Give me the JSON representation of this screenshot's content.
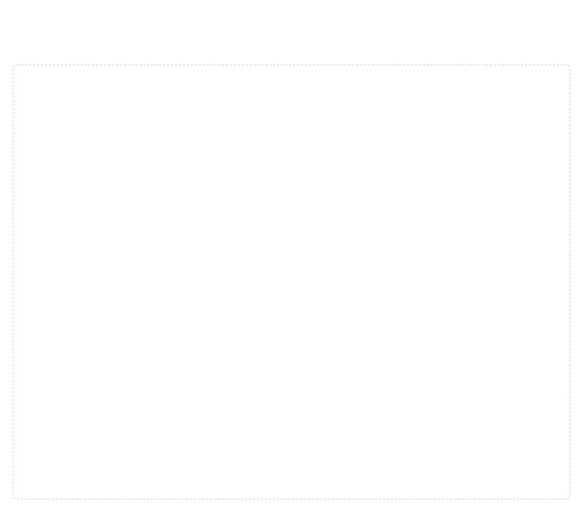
{
  "page": {
    "title": "",
    "subtitle": ""
  },
  "content": {
    "lines": []
  }
}
